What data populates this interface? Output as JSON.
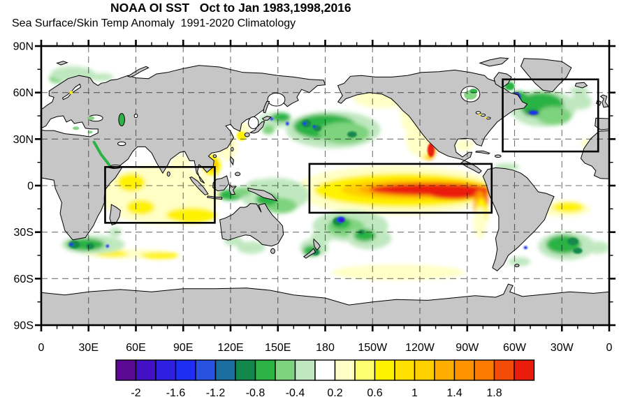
{
  "header": {
    "title": "NOAA OI SST   Oct to Jan 1983,1998,2016",
    "subtitle": "Sea Surface/Skin Temp Anomaly  1991-2020 Climatology"
  },
  "axes": {
    "lat_labels": [
      {
        "text": "90N",
        "lat": 90
      },
      {
        "text": "60N",
        "lat": 60
      },
      {
        "text": "30N",
        "lat": 30
      },
      {
        "text": "0",
        "lat": 0
      },
      {
        "text": "30S",
        "lat": -30
      },
      {
        "text": "60S",
        "lat": -60
      },
      {
        "text": "90S",
        "lat": -90
      }
    ],
    "lon_labels": [
      {
        "text": "0",
        "lon": 0
      },
      {
        "text": "30E",
        "lon": 30
      },
      {
        "text": "60E",
        "lon": 60
      },
      {
        "text": "90E",
        "lon": 90
      },
      {
        "text": "120E",
        "lon": 120
      },
      {
        "text": "150E",
        "lon": 150
      },
      {
        "text": "180",
        "lon": 180
      },
      {
        "text": "150W",
        "lon": 210
      },
      {
        "text": "120W",
        "lon": 240
      },
      {
        "text": "90W",
        "lon": 270
      },
      {
        "text": "60W",
        "lon": 300
      },
      {
        "text": "30W",
        "lon": 330
      },
      {
        "text": "0",
        "lon": 360
      }
    ],
    "lat_major_step": 30,
    "lat_minor_step": 15,
    "lon_major_step": 30,
    "lon_minor_step": 10
  },
  "map": {
    "land_color": "#c6c6c6",
    "ocean_color": "#ffffff",
    "coast_color": "#000000",
    "grid_color": "#000000",
    "grid_opacity": 0.55
  },
  "chart_data": {
    "type": "heatmap",
    "title": "NOAA OI SST   Oct to Jan 1983,1998,2016",
    "subtitle": "Sea Surface/Skin Temp Anomaly  1991-2020 Climatology",
    "projection": "equirectangular world map, longitude 0E eastward through 180 to 0W, latitude 90N to 90S",
    "lat_range": [
      90,
      -90
    ],
    "lon_range": [
      0,
      360
    ],
    "grid_interval_deg": 30,
    "colorbar": {
      "levels": [
        -2.2,
        -2,
        -1.8,
        -1.6,
        -1.4,
        -1.2,
        -1,
        -0.8,
        -0.6,
        -0.4,
        -0.2,
        0.2,
        0.4,
        0.6,
        0.8,
        1,
        1.2,
        1.4,
        1.6,
        1.8,
        2,
        2.2
      ],
      "tick_labels": [
        "-2",
        "-1.6",
        "-1.2",
        "-0.8",
        "-0.4",
        "0.2",
        "0.6",
        "1",
        "1.4",
        "1.8"
      ],
      "tick_positions": [
        1,
        3,
        5,
        7,
        9,
        11,
        13,
        15,
        17,
        19
      ],
      "colors": [
        "#5c0a96",
        "#4410c6",
        "#2f1fe0",
        "#1e2ff2",
        "#2a52e0",
        "#1b6fa0",
        "#13884c",
        "#2bb344",
        "#7ed37e",
        "#c0e8c0",
        "#ffffff",
        "#ffffc6",
        "#ffff70",
        "#fff200",
        "#ffdf00",
        "#ffd000",
        "#ffae00",
        "#ff9400",
        "#fb7b00",
        "#f24b0a",
        "#ec1c0c"
      ]
    },
    "region_boxes": [
      {
        "name": "indian-ocean-region",
        "lon_min": 40.5,
        "lon_max": 110,
        "lat_min": -24,
        "lat_max": 12
      },
      {
        "name": "equatorial-pacific-region",
        "lon_min": 170,
        "lon_max": 285.5,
        "lat_min": -17.5,
        "lat_max": 14
      },
      {
        "name": "north-atlantic-region",
        "lon_min": 292.5,
        "lon_max": 353,
        "lat_min": 22,
        "lat_max": 68.5
      }
    ],
    "features_summary": [
      "Strong El Nino warm tongue (>2) along equatorial Pacific from ~170E to South America coast",
      "Red coastal warm anomaly along Peru and near Baja California / Mexico",
      "Broad weak warm (0.2-0.8) anomalies across tropical Indian Ocean",
      "Cold (green) anomalies central North Pacific 30-45N with blue cores",
      "Cold horseshoe in South Pacific with blue core near 170W,22S",
      "Cold subpolar North Atlantic with dark blue spot near Labrador",
      "Cold band south of Africa and in South Atlantic 30-50S",
      "Yellow warm band along ~55S in Pacific Southern Ocean"
    ],
    "anomaly_patches": [
      [
        75,
        -6,
        38,
        19,
        11
      ],
      [
        57,
        2,
        9,
        6,
        13
      ],
      [
        63,
        -14,
        9,
        5,
        13
      ],
      [
        95,
        -19,
        16,
        5,
        13
      ],
      [
        88,
        14,
        6,
        6,
        11
      ],
      [
        108,
        13,
        6,
        7,
        13
      ],
      [
        109,
        13,
        3,
        4,
        15
      ],
      [
        118,
        25,
        6,
        9,
        11
      ],
      [
        127,
        32,
        3,
        3,
        13
      ],
      [
        128,
        36,
        4,
        5,
        11
      ],
      [
        225,
        -3,
        65,
        16,
        11
      ],
      [
        230,
        -3,
        57,
        11,
        13
      ],
      [
        238,
        -2.5,
        48,
        7,
        15
      ],
      [
        243,
        -2.5,
        42,
        5,
        16
      ],
      [
        246,
        -2.5,
        38,
        3.8,
        20
      ],
      [
        262,
        -4,
        18,
        5,
        20
      ],
      [
        279,
        -9,
        4.5,
        8,
        20
      ],
      [
        278,
        -13,
        4,
        10,
        17
      ],
      [
        279,
        -18,
        4,
        10,
        13
      ],
      [
        278,
        -24,
        4,
        10,
        11
      ],
      [
        247,
        23,
        2.2,
        4.5,
        20
      ],
      [
        246,
        23,
        4,
        6.5,
        17
      ],
      [
        244,
        25,
        5,
        8,
        15
      ],
      [
        242,
        28,
        7,
        10,
        13
      ],
      [
        240,
        31,
        9,
        12,
        11
      ],
      [
        214,
        57,
        14,
        4,
        13
      ],
      [
        216,
        56,
        18,
        6,
        11
      ],
      [
        232,
        47,
        4,
        8,
        13
      ],
      [
        233,
        45,
        5,
        10,
        11
      ],
      [
        226,
        -57,
        38,
        3.5,
        13
      ],
      [
        226,
        -56,
        42,
        5,
        11
      ],
      [
        55,
        -44,
        28,
        3,
        11
      ],
      [
        45,
        -44,
        10,
        2.2,
        13
      ],
      [
        75,
        -45,
        12,
        2.2,
        13
      ],
      [
        330,
        -15,
        18,
        5,
        11
      ],
      [
        334,
        -14,
        10,
        3.5,
        13
      ],
      [
        268,
        26,
        6,
        3.5,
        11
      ],
      [
        19,
        59,
        1.5,
        2,
        13
      ],
      [
        347,
        27,
        5,
        3,
        11
      ],
      [
        185,
        36,
        30,
        12,
        9
      ],
      [
        180,
        38,
        20,
        8,
        7
      ],
      [
        192,
        34,
        16,
        7,
        8
      ],
      [
        168,
        40,
        3,
        2.5,
        6
      ],
      [
        175,
        37,
        2.5,
        2,
        6
      ],
      [
        197,
        33,
        3,
        2,
        6
      ],
      [
        167,
        40,
        1.2,
        1,
        3
      ],
      [
        173,
        38,
        1,
        1,
        3
      ],
      [
        148,
        42,
        10,
        5,
        9
      ],
      [
        152,
        44,
        6,
        3,
        7
      ],
      [
        144,
        36,
        4,
        3,
        8
      ],
      [
        146,
        43,
        1,
        1,
        3
      ],
      [
        156,
        40,
        1,
        1.2,
        3
      ],
      [
        148,
        -6,
        22,
        11,
        9
      ],
      [
        152,
        -13,
        10,
        5,
        8
      ],
      [
        143,
        -9,
        7,
        4,
        7
      ],
      [
        120,
        -6,
        8,
        3.5,
        7
      ],
      [
        127,
        -4,
        6,
        3,
        8
      ],
      [
        138,
        0,
        8,
        4,
        9
      ],
      [
        196,
        -26,
        24,
        10,
        9
      ],
      [
        193,
        -27,
        12,
        6,
        8
      ],
      [
        190,
        -24,
        6,
        4,
        7
      ],
      [
        188,
        -23,
        3,
        2.5,
        6
      ],
      [
        190,
        -22,
        2.5,
        2,
        3
      ],
      [
        190.5,
        -22.5,
        1.3,
        1,
        1
      ],
      [
        208,
        -34,
        14,
        7,
        9
      ],
      [
        205,
        -32,
        7,
        4,
        7
      ],
      [
        203,
        -30,
        2,
        1.5,
        6
      ],
      [
        173,
        -40,
        9,
        6,
        9
      ],
      [
        171,
        -42,
        5,
        3.5,
        7
      ],
      [
        174,
        -43,
        2.5,
        2,
        6
      ],
      [
        178,
        -33,
        7,
        4,
        9
      ],
      [
        133,
        -40,
        9,
        4,
        9
      ],
      [
        122,
        -36,
        6,
        3,
        9
      ],
      [
        33,
        -38,
        20,
        6,
        9
      ],
      [
        28,
        -38,
        12,
        4,
        7
      ],
      [
        21,
        -38,
        3.5,
        2.5,
        6
      ],
      [
        31,
        -39,
        2.5,
        2,
        6
      ],
      [
        19,
        -38,
        1.3,
        1,
        3
      ],
      [
        42,
        -39,
        1,
        1,
        3
      ],
      [
        47,
        -30,
        4,
        3,
        9
      ],
      [
        318,
        50,
        21,
        12,
        9
      ],
      [
        317,
        52,
        14,
        8,
        7
      ],
      [
        325,
        45,
        11,
        6,
        8
      ],
      [
        311,
        47,
        5,
        2,
        6
      ],
      [
        312,
        47,
        3,
        1.3,
        3
      ],
      [
        303,
        56,
        6,
        5,
        7
      ],
      [
        301,
        57,
        3,
        3,
        3
      ],
      [
        301.5,
        57.5,
        1.6,
        1.8,
        1
      ],
      [
        342,
        54,
        7,
        5,
        9
      ],
      [
        341,
        61,
        6,
        3,
        9
      ],
      [
        295,
        66,
        5,
        4,
        9
      ],
      [
        297,
        64,
        3,
        2.5,
        7
      ],
      [
        25,
        71,
        10,
        3.5,
        7
      ],
      [
        38,
        70,
        8,
        2.5,
        9
      ],
      [
        10,
        69,
        5,
        3,
        8
      ],
      [
        20,
        72,
        14,
        5,
        9
      ],
      [
        333,
        -39,
        18,
        9,
        9
      ],
      [
        331,
        -38,
        11,
        6,
        7
      ],
      [
        337,
        -36,
        3.5,
        2.5,
        6
      ],
      [
        340,
        -42,
        3,
        2,
        6
      ],
      [
        307,
        -40,
        1.2,
        1,
        3
      ],
      [
        303,
        -49,
        7,
        3,
        9
      ],
      [
        353,
        -40,
        7,
        4,
        9
      ],
      [
        295,
        12,
        8,
        2.5,
        9
      ]
    ],
    "overlay_patches": [
      [
        272,
        58.5,
        4,
        3,
        8
      ],
      [
        274,
        61,
        2.5,
        1.5,
        7
      ],
      [
        22,
        37,
        2,
        1.1,
        8
      ],
      [
        31,
        34.5,
        1.6,
        0.9,
        8
      ],
      [
        278,
        45.8,
        1,
        0.5,
        13
      ],
      [
        282,
        43.8,
        0.8,
        0.4,
        13
      ],
      [
        19,
        60,
        1,
        1.1,
        13
      ],
      [
        31.5,
        43.5,
        2.3,
        1.2,
        8
      ]
    ]
  }
}
